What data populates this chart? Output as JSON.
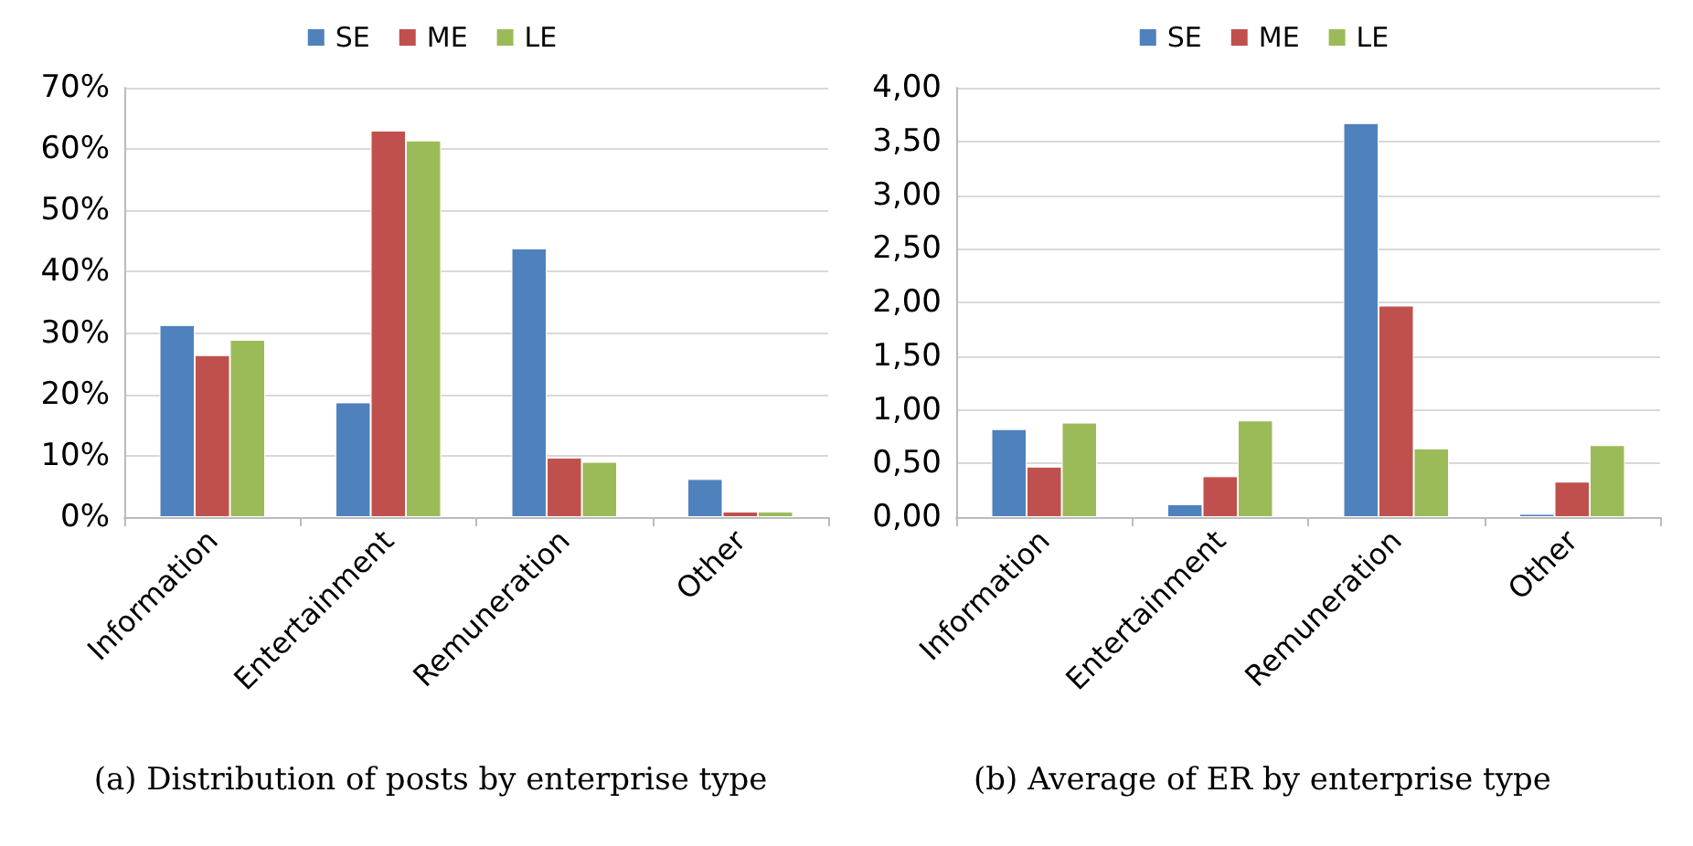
{
  "chart_data": [
    {
      "type": "bar",
      "title": "(a) Distribution of posts by enterprise type",
      "categories": [
        "Information",
        "Entertainment",
        "Remuneration",
        "Other"
      ],
      "series": [
        {
          "name": "SE",
          "color": "#4f81bd",
          "values": [
            31.3,
            18.7,
            43.8,
            6.2
          ]
        },
        {
          "name": "ME",
          "color": "#c0504d",
          "values": [
            26.4,
            63.0,
            9.7,
            0.9
          ]
        },
        {
          "name": "LE",
          "color": "#9bbb59",
          "values": [
            28.9,
            61.4,
            9.0,
            0.9
          ]
        }
      ],
      "ylim": [
        0,
        70
      ],
      "yticks": [
        {
          "value": 0,
          "label": "0%"
        },
        {
          "value": 10,
          "label": "10%"
        },
        {
          "value": 20,
          "label": "20%"
        },
        {
          "value": 30,
          "label": "30%"
        },
        {
          "value": 40,
          "label": "40%"
        },
        {
          "value": 50,
          "label": "50%"
        },
        {
          "value": 60,
          "label": "60%"
        },
        {
          "value": 70,
          "label": "70%"
        }
      ],
      "grid": "y",
      "legend": "top"
    },
    {
      "type": "bar",
      "title": "(b) Average of ER by enterprise type",
      "categories": [
        "Information",
        "Entertainment",
        "Remuneration",
        "Other"
      ],
      "series": [
        {
          "name": "SE",
          "color": "#4f81bd",
          "values": [
            0.82,
            0.12,
            3.67,
            0.03
          ]
        },
        {
          "name": "ME",
          "color": "#c0504d",
          "values": [
            0.47,
            0.38,
            1.97,
            0.33
          ]
        },
        {
          "name": "LE",
          "color": "#9bbb59",
          "values": [
            0.88,
            0.9,
            0.64,
            0.67
          ]
        }
      ],
      "ylim": [
        0,
        4
      ],
      "yticks": [
        {
          "value": 0,
          "label": "0,00"
        },
        {
          "value": 0.5,
          "label": "0,50"
        },
        {
          "value": 1,
          "label": "1,00"
        },
        {
          "value": 1.5,
          "label": "1,50"
        },
        {
          "value": 2,
          "label": "2,00"
        },
        {
          "value": 2.5,
          "label": "2,50"
        },
        {
          "value": 3,
          "label": "3,00"
        },
        {
          "value": 3.5,
          "label": "3,50"
        },
        {
          "value": 4,
          "label": "4,00"
        }
      ],
      "grid": "y",
      "legend": "top"
    }
  ]
}
